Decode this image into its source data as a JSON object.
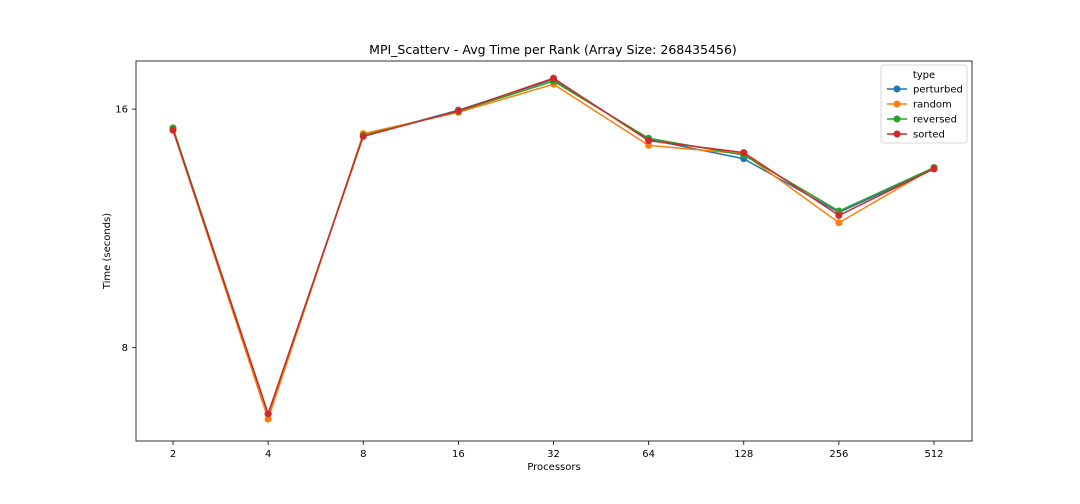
{
  "chart_data": {
    "type": "line",
    "title": "MPI_Scatterv - Avg Time per Rank (Array Size: 268435456)",
    "xlabel": "Processors",
    "ylabel": "Time (seconds)",
    "x_scale": "log2",
    "y_scale": "log2",
    "categories": [
      "2",
      "4",
      "8",
      "16",
      "32",
      "64",
      "128",
      "256",
      "512"
    ],
    "x": [
      2,
      4,
      8,
      16,
      32,
      64,
      128,
      256,
      512
    ],
    "yticks": [
      8,
      16
    ],
    "ytick_labels": [
      "8",
      "16"
    ],
    "ylim": [
      6.1,
      18.4
    ],
    "grid": false,
    "legend": {
      "title": "type",
      "placement": "top-right"
    },
    "series": [
      {
        "name": "perturbed",
        "color": "#1f77b4",
        "values": [
          15.1,
          6.6,
          14.8,
          15.95,
          17.45,
          14.65,
          13.85,
          11.85,
          13.45
        ]
      },
      {
        "name": "random",
        "color": "#ff7f0e",
        "values": [
          15.05,
          6.5,
          14.9,
          15.85,
          17.2,
          14.4,
          14.05,
          11.5,
          13.5
        ]
      },
      {
        "name": "reversed",
        "color": "#2ca02c",
        "values": [
          15.15,
          6.6,
          14.82,
          15.9,
          17.35,
          14.7,
          14.0,
          11.9,
          13.5
        ]
      },
      {
        "name": "sorted",
        "color": "#d62728",
        "values": [
          15.05,
          6.6,
          14.78,
          15.92,
          17.5,
          14.6,
          14.1,
          11.75,
          13.45
        ]
      }
    ]
  }
}
